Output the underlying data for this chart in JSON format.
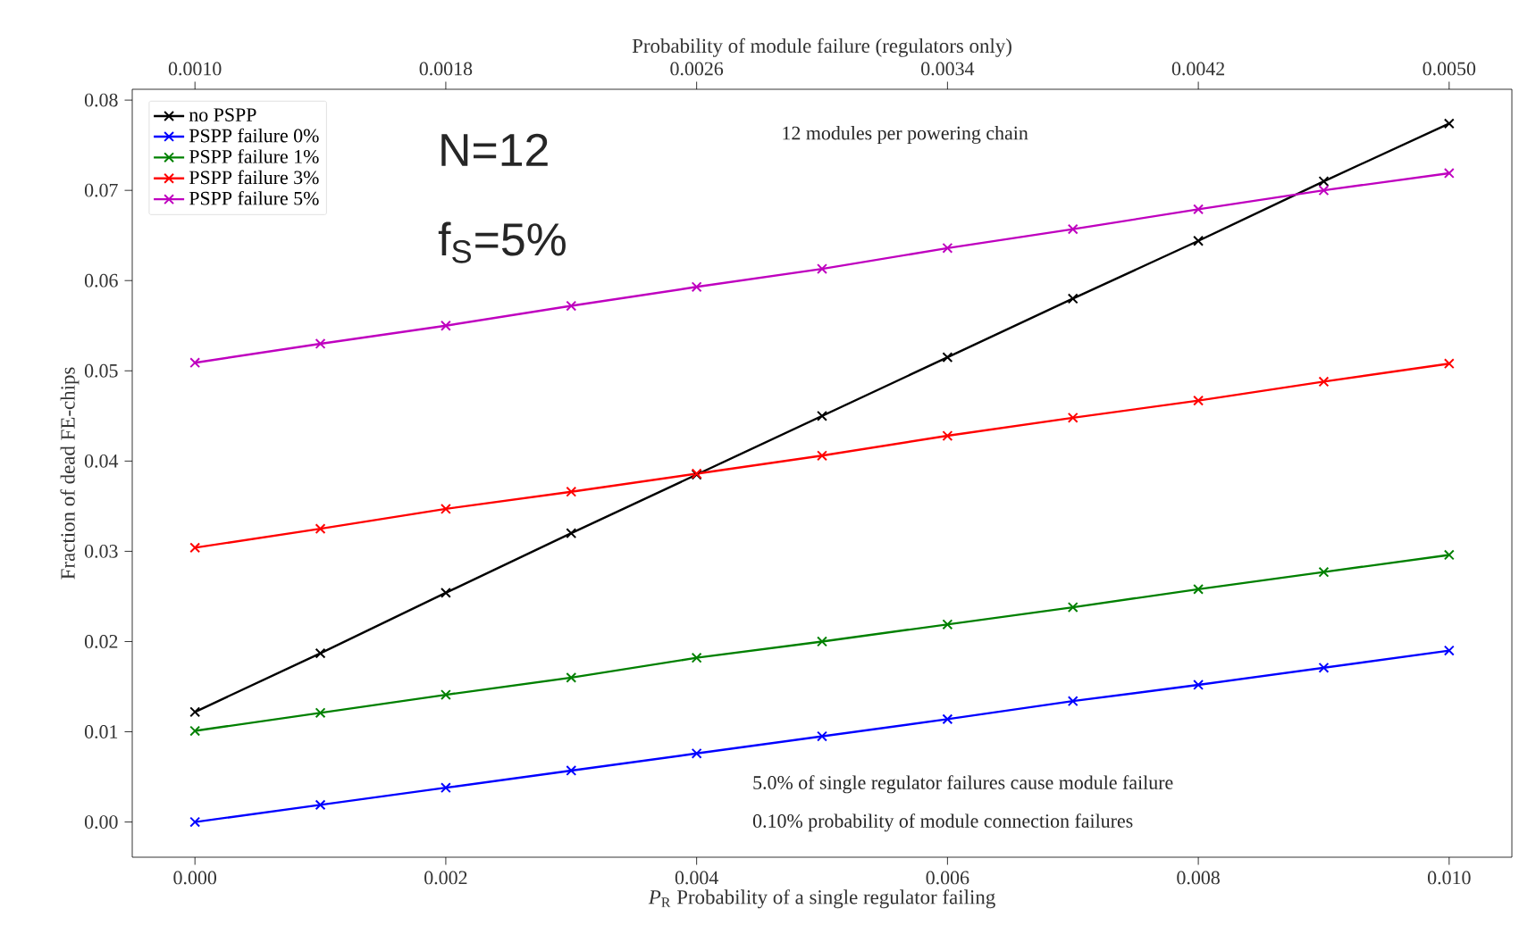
{
  "chart_data": {
    "type": "line",
    "xlabel": "*P*$_{R}$ Probability of a single regulator failing",
    "ylabel": "Fraction of dead FE-chips",
    "x2label": "Probability of module failure (regulators only)",
    "x": [
      0,
      0.001,
      0.002,
      0.003,
      0.004,
      0.005,
      0.006,
      0.007,
      0.008,
      0.009,
      0.01
    ],
    "series": [
      {
        "name": "no PSPP",
        "color": "#000000",
        "values": [
          0.0122,
          0.0187,
          0.0254,
          0.032,
          0.0385,
          0.045,
          0.0515,
          0.058,
          0.0644,
          0.071,
          0.0774
        ]
      },
      {
        "name": "PSPP failure 0%",
        "color": "#0000ff",
        "values": [
          0.0,
          0.0019,
          0.0038,
          0.0057,
          0.0076,
          0.0095,
          0.0114,
          0.0134,
          0.0152,
          0.0171,
          0.019
        ]
      },
      {
        "name": "PSPP failure 1%",
        "color": "#008000",
        "values": [
          0.0101,
          0.0121,
          0.0141,
          0.016,
          0.0182,
          0.02,
          0.0219,
          0.0238,
          0.0258,
          0.0277,
          0.0296
        ]
      },
      {
        "name": "PSPP failure 3%",
        "color": "#ff0000",
        "values": [
          0.0304,
          0.0325,
          0.0347,
          0.0366,
          0.0386,
          0.0406,
          0.0428,
          0.0448,
          0.0467,
          0.0488,
          0.0508
        ]
      },
      {
        "name": "PSPP failure 5%",
        "color": "#bf00bf",
        "values": [
          0.0509,
          0.053,
          0.055,
          0.0572,
          0.0593,
          0.0613,
          0.0636,
          0.0657,
          0.0679,
          0.07,
          0.0719
        ]
      }
    ],
    "xlim": [
      -0.0005,
      0.0105
    ],
    "xticks": [
      {
        "value": 0,
        "label": "0.000"
      },
      {
        "value": 0.002,
        "label": "0.002"
      },
      {
        "value": 0.004,
        "label": "0.004"
      },
      {
        "value": 0.006,
        "label": "0.006"
      },
      {
        "value": 0.008,
        "label": "0.008"
      },
      {
        "value": 0.01,
        "label": "0.010"
      }
    ],
    "x2lim": [
      0.0008,
      0.0052
    ],
    "x2ticks": [
      {
        "value": 0.001,
        "label": "0.0010"
      },
      {
        "value": 0.0018,
        "label": "0.0018"
      },
      {
        "value": 0.0026,
        "label": "0.0026"
      },
      {
        "value": 0.0034,
        "label": "0.0034"
      },
      {
        "value": 0.0042,
        "label": "0.0042"
      },
      {
        "value": 0.005,
        "label": "0.0050"
      }
    ],
    "ylim": [
      -0.0039,
      0.0812
    ],
    "yticks": [
      {
        "value": 0,
        "label": "0.00"
      },
      {
        "value": 0.01,
        "label": "0.01"
      },
      {
        "value": 0.02,
        "label": "0.02"
      },
      {
        "value": 0.03,
        "label": "0.03"
      },
      {
        "value": 0.04,
        "label": "0.04"
      },
      {
        "value": 0.05,
        "label": "0.05"
      },
      {
        "value": 0.06,
        "label": "0.06"
      },
      {
        "value": 0.07,
        "label": "0.07"
      },
      {
        "value": 0.08,
        "label": "0.08"
      }
    ],
    "annotations": [
      "12 modules per powering chain",
      "N=12",
      "f$_{S}$=5%",
      "5.0% of single regulator failures cause module failure",
      "0.10% probability of module connection failures"
    ],
    "legend": "top left",
    "grid": false,
    "marker": "cross",
    "line_style": "solid"
  }
}
